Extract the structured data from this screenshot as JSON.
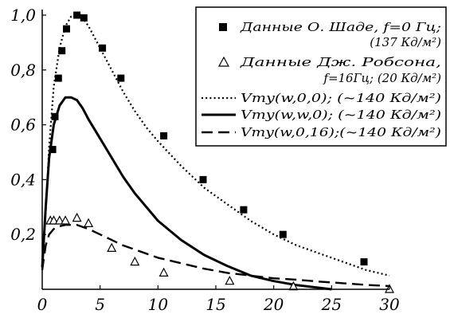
{
  "chart_data": {
    "type": "scatter",
    "xlim": [
      0,
      30
    ],
    "ylim": [
      0,
      1.0
    ],
    "x_ticks": [
      "0",
      "5",
      "10",
      "15",
      "20",
      "25",
      "30"
    ],
    "y_ticks": [
      "0,2",
      "0,4",
      "0,6",
      "0,8",
      "1,0"
    ],
    "xlabel": "",
    "ylabel": "",
    "grid": false,
    "legend_position": "top-right",
    "legend": [
      {
        "line1": "Данные О. Шаде, f=0 Гц;",
        "line2": "(137 Кд/м²)",
        "marker": "square"
      },
      {
        "line1": "Данные Дж. Робсона,",
        "line2": "f=16Гц; (20 Кд/м²)",
        "marker": "triangle"
      },
      {
        "line1": "Vmy(w,0,0);  (~140 Кд/м²)",
        "style": "dotted"
      },
      {
        "line1": "Vmy(w,w,0);  (~140 Кд/м²)",
        "style": "solid"
      },
      {
        "line1": "Vmy(w,0,16);(~140 Кд/м²)",
        "style": "dashed"
      }
    ],
    "series": [
      {
        "kind": "points",
        "marker": "square",
        "x": [
          0.9,
          1.1,
          1.4,
          1.7,
          2.1,
          3.0,
          3.6,
          5.2,
          6.8,
          10.5,
          13.9,
          17.4,
          20.8,
          27.8
        ],
        "y": [
          0.51,
          0.63,
          0.77,
          0.87,
          0.95,
          1.0,
          0.99,
          0.88,
          0.77,
          0.56,
          0.4,
          0.29,
          0.2,
          0.1
        ]
      },
      {
        "kind": "points",
        "marker": "triangle",
        "x": [
          0.7,
          1.0,
          1.5,
          2.0,
          3.0,
          4.0,
          6.0,
          8.0,
          10.5,
          16.2,
          21.7,
          30.0
        ],
        "y": [
          0.25,
          0.25,
          0.25,
          0.25,
          0.26,
          0.24,
          0.15,
          0.1,
          0.06,
          0.03,
          0.01,
          0.0
        ]
      },
      {
        "kind": "line",
        "style": "dotted",
        "x": [
          0.0,
          0.3,
          0.6,
          1.0,
          1.5,
          2.0,
          2.5,
          3.0,
          3.5,
          4.0,
          5.0,
          6.0,
          7.0,
          8.0,
          9.0,
          10.0,
          12.0,
          14.0,
          16.0,
          18.0,
          20.0,
          22.0,
          24.0,
          26.0,
          28.0,
          30.0
        ],
        "y": [
          0.08,
          0.28,
          0.52,
          0.74,
          0.88,
          0.96,
          0.995,
          1.0,
          0.99,
          0.96,
          0.88,
          0.8,
          0.72,
          0.65,
          0.59,
          0.54,
          0.45,
          0.37,
          0.31,
          0.25,
          0.2,
          0.16,
          0.13,
          0.1,
          0.07,
          0.05
        ]
      },
      {
        "kind": "line",
        "style": "solid",
        "x": [
          0.0,
          0.3,
          0.6,
          1.0,
          1.5,
          2.0,
          2.5,
          3.0,
          3.5,
          4.0,
          5.0,
          6.0,
          7.0,
          8.0,
          9.0,
          10.0,
          12.0,
          14.0,
          16.0,
          18.0,
          20.0,
          22.0,
          24.0,
          25.0
        ],
        "y": [
          0.08,
          0.3,
          0.48,
          0.6,
          0.67,
          0.7,
          0.7,
          0.69,
          0.66,
          0.62,
          0.55,
          0.48,
          0.41,
          0.35,
          0.3,
          0.25,
          0.18,
          0.125,
          0.085,
          0.05,
          0.03,
          0.015,
          0.005,
          0.0
        ]
      },
      {
        "kind": "line",
        "style": "dashed",
        "x": [
          0.0,
          0.3,
          0.6,
          1.0,
          1.5,
          2.0,
          3.0,
          4.0,
          5.0,
          6.0,
          7.0,
          8.0,
          10.0,
          12.0,
          14.0,
          16.0,
          18.0,
          20.0,
          22.0,
          24.0,
          26.0,
          28.0,
          30.0
        ],
        "y": [
          0.07,
          0.16,
          0.2,
          0.22,
          0.23,
          0.235,
          0.235,
          0.22,
          0.2,
          0.18,
          0.16,
          0.145,
          0.115,
          0.095,
          0.075,
          0.06,
          0.05,
          0.04,
          0.035,
          0.028,
          0.022,
          0.016,
          0.012
        ]
      }
    ]
  }
}
